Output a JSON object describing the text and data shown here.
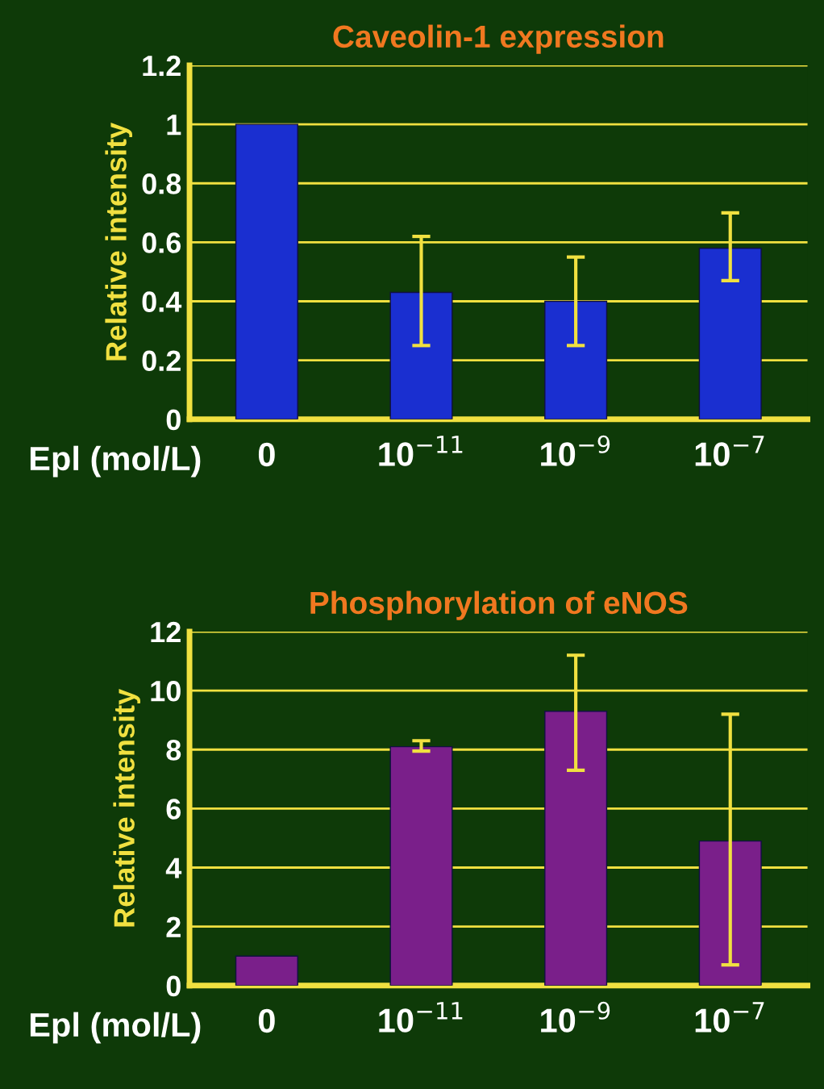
{
  "chart_data": [
    {
      "type": "bar",
      "title": "Caveolin-1 expression",
      "xlabel": "Epl (mol/L)",
      "ylabel": "Relative intensity",
      "categories": [
        "0",
        "10$^{−11}$",
        "10$^{−9}$",
        "10$^{−7}$"
      ],
      "series": [
        {
          "color": "#1a2fd0",
          "values": [
            1,
            0.43,
            0.4,
            0.58
          ],
          "errors": [
            null,
            [
              0.25,
              0.62
            ],
            [
              0.25,
              0.55
            ],
            [
              0.47,
              0.7
            ]
          ]
        }
      ],
      "ylim": [
        0,
        1.2
      ],
      "yticks": [
        0,
        0.2,
        0.4,
        0.6,
        0.8,
        1,
        1.2
      ],
      "grid": "y",
      "legend": false
    },
    {
      "type": "bar",
      "title": "Phosphorylation of eNOS",
      "xlabel": "Epl (mol/L)",
      "ylabel": "Relative intensity",
      "categories": [
        "0",
        "10$^{−11}$",
        "10$^{−9}$",
        "10$^{−7}$"
      ],
      "series": [
        {
          "color": "#7a1f8a",
          "values": [
            1,
            8.1,
            9.3,
            4.9
          ],
          "errors": [
            null,
            [
              7.95,
              8.3
            ],
            [
              7.3,
              11.2
            ],
            [
              0.7,
              9.2
            ]
          ]
        }
      ],
      "ylim": [
        0,
        12
      ],
      "yticks": [
        0,
        2,
        4,
        6,
        8,
        10,
        12
      ],
      "grid": "y",
      "legend": false
    }
  ]
}
